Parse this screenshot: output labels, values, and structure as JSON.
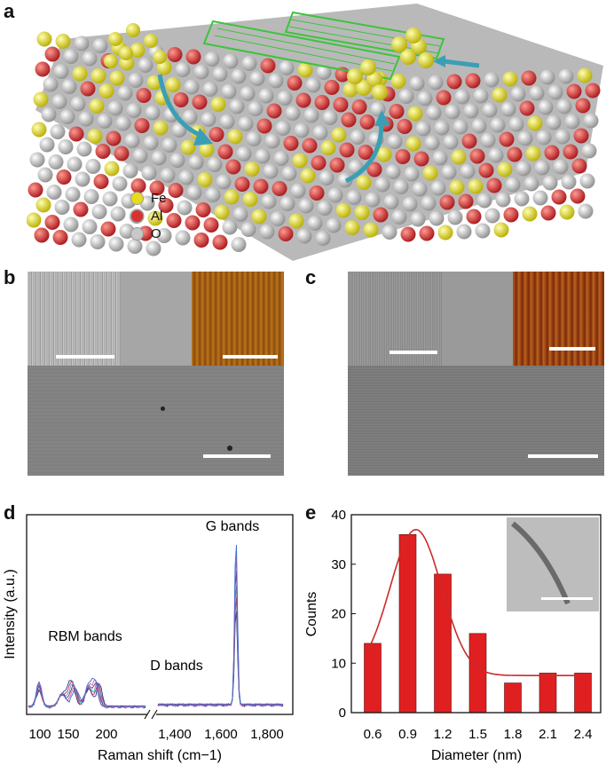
{
  "panels": {
    "a": {
      "label": "a",
      "legend": [
        {
          "symbol": "Fe",
          "color": "#e6dc1e"
        },
        {
          "symbol": "Al",
          "color": "#d8322e"
        },
        {
          "symbol": "O",
          "color": "#c8c8c8"
        }
      ],
      "arrow_color": "#3a9fb4",
      "nanotube_color": "#3cc43c"
    },
    "b": {
      "label": "b"
    },
    "c": {
      "label": "c"
    },
    "d": {
      "label": "d"
    },
    "e": {
      "label": "e"
    }
  },
  "chart_data": [
    {
      "type": "line",
      "panel": "d",
      "xlabel": "Raman shift (cm−1)",
      "ylabel": "Intensity (a.u.)",
      "x_ticks_left": [
        100,
        150,
        200
      ],
      "x_ticks_right": [
        "1,400",
        "1,600",
        "1,800"
      ],
      "annotations": [
        "RBM bands",
        "D bands",
        "G bands"
      ],
      "series_colors": [
        "#2a3a8a",
        "#c83264",
        "#40b0b0",
        "#7a2aa0",
        "#d06a8a",
        "#3a6ad0"
      ]
    },
    {
      "type": "bar",
      "panel": "e",
      "categories": [
        "0.6",
        "0.9",
        "1.2",
        "1.5",
        "1.8",
        "2.1",
        "2.4"
      ],
      "values": [
        14,
        36,
        28,
        16,
        6,
        8,
        8
      ],
      "xlabel": "Diameter (nm)",
      "ylabel": "Counts",
      "ylim": [
        0,
        40
      ],
      "y_ticks": [
        0,
        10,
        20,
        30,
        40
      ],
      "bar_color": "#e02020",
      "fit_color": "#cc2a2a"
    }
  ]
}
